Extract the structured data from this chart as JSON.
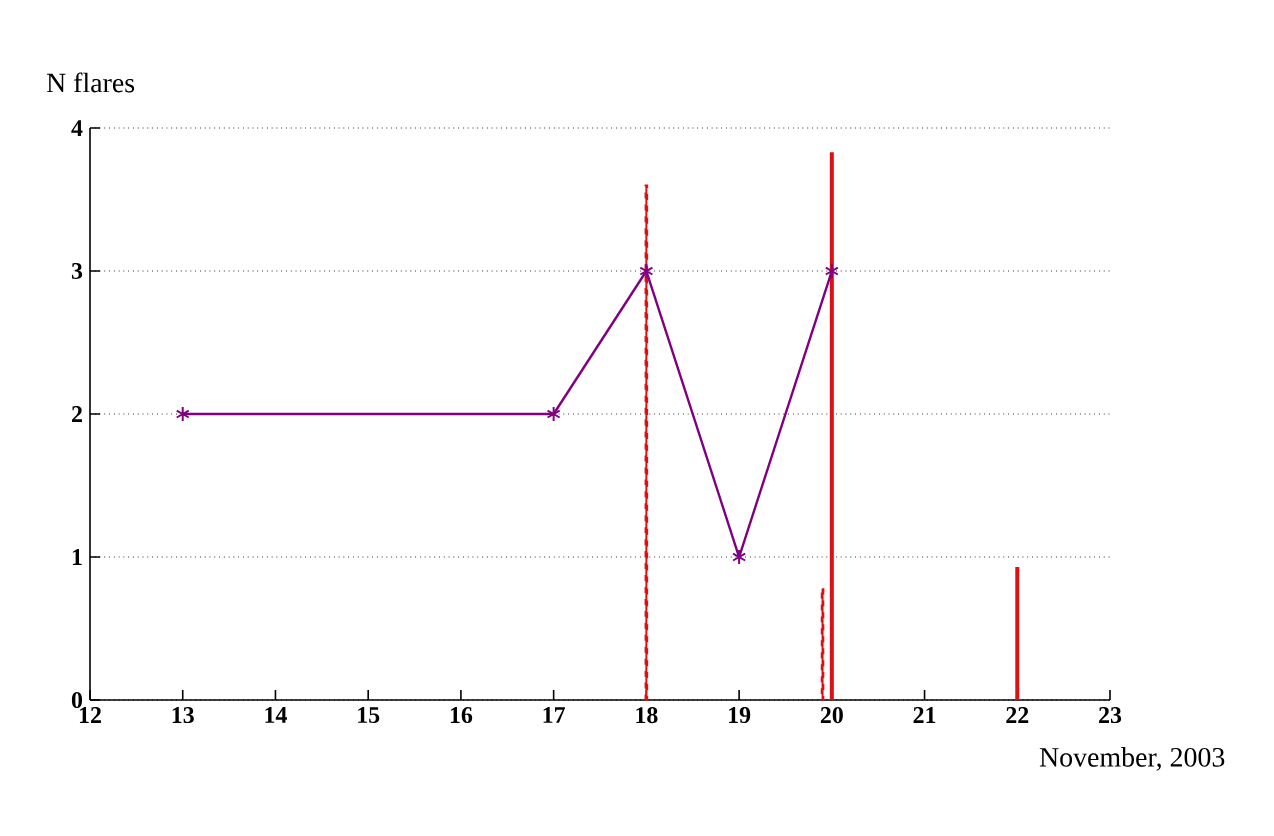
{
  "chart_data": {
    "type": "line",
    "ylabel": "N flares",
    "xlabel": "November, 2003",
    "xlim": [
      12,
      23
    ],
    "xticks": [
      12,
      13,
      14,
      15,
      16,
      17,
      18,
      19,
      20,
      21,
      22,
      23
    ],
    "ylim": [
      0,
      4
    ],
    "yticks": [
      0,
      1,
      2,
      3,
      4
    ],
    "grid": "y",
    "series": [
      {
        "color": "#800080",
        "marker": "cross",
        "line_style": "solid",
        "x": [
          13,
          17,
          18,
          19,
          20
        ],
        "values": [
          2,
          2,
          3,
          1,
          3
        ]
      },
      {
        "type": "bar",
        "color": "#dd1111",
        "line_style": "dashed",
        "x": [
          18,
          19.9
        ],
        "values": [
          3.6,
          0.78
        ]
      },
      {
        "type": "bar",
        "color": "#dd1111",
        "line_style": "solid",
        "x": [
          20,
          22
        ],
        "values": [
          3.83,
          0.93
        ]
      }
    ]
  }
}
